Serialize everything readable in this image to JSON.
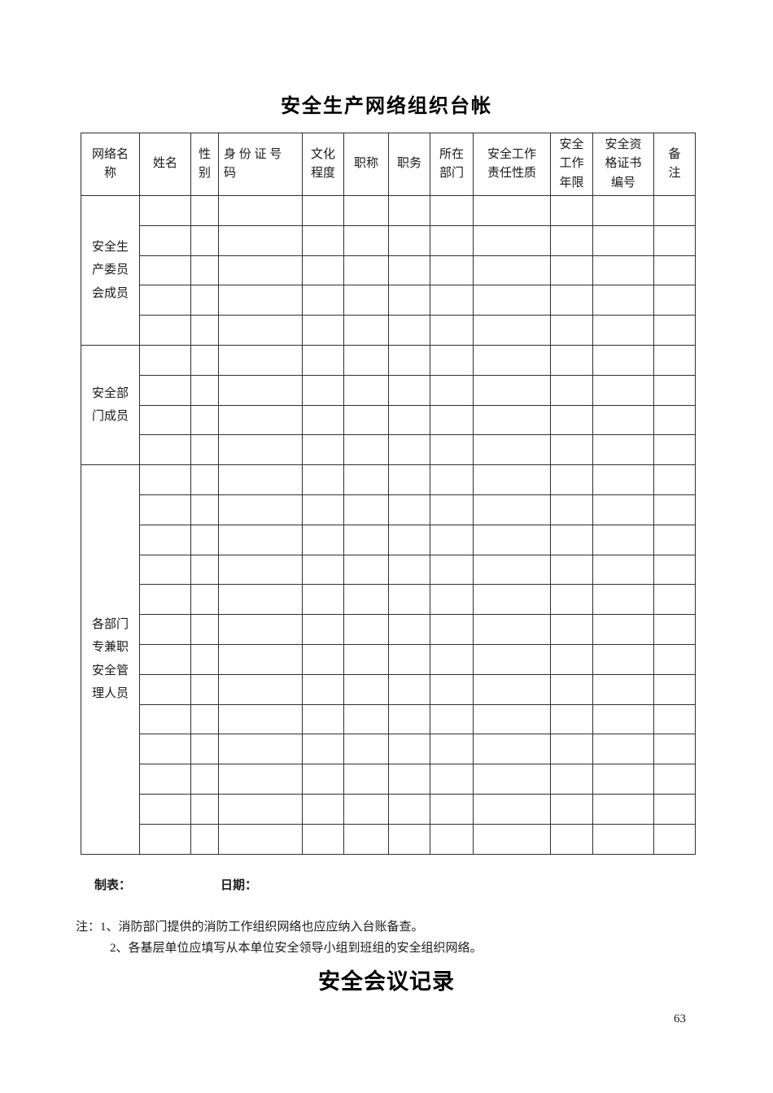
{
  "title": "安全生产网络组织台帐",
  "table": {
    "columns": [
      "网络名\n称",
      "姓名",
      "性\n别",
      "身 份 证 号\n码",
      "文化\n程度",
      "职称",
      "职务",
      "所在\n部门",
      "安全工作\n责任性质",
      "安全\n工作\n年限",
      "安全资\n格证书\n编号",
      "备\n注"
    ],
    "groups": [
      {
        "label": "安全生\n产委员\n会成员",
        "rows": 5
      },
      {
        "label": "安全部\n门成员",
        "rows": 4
      },
      {
        "label": "各部门\n专兼职\n安全管\n理人员",
        "rows": 13
      }
    ]
  },
  "footer": {
    "maker_label": "制表：",
    "date_label": "日期："
  },
  "notes": {
    "prefix": "注：",
    "items": [
      "1、消防部门提供的消防工作组织网络也应应纳入台账备查。",
      "2、各基层单位应填写从本单位安全领导小组到班组的安全组织网络。"
    ]
  },
  "next_section_title": "安全会议记录",
  "page_number": "63"
}
